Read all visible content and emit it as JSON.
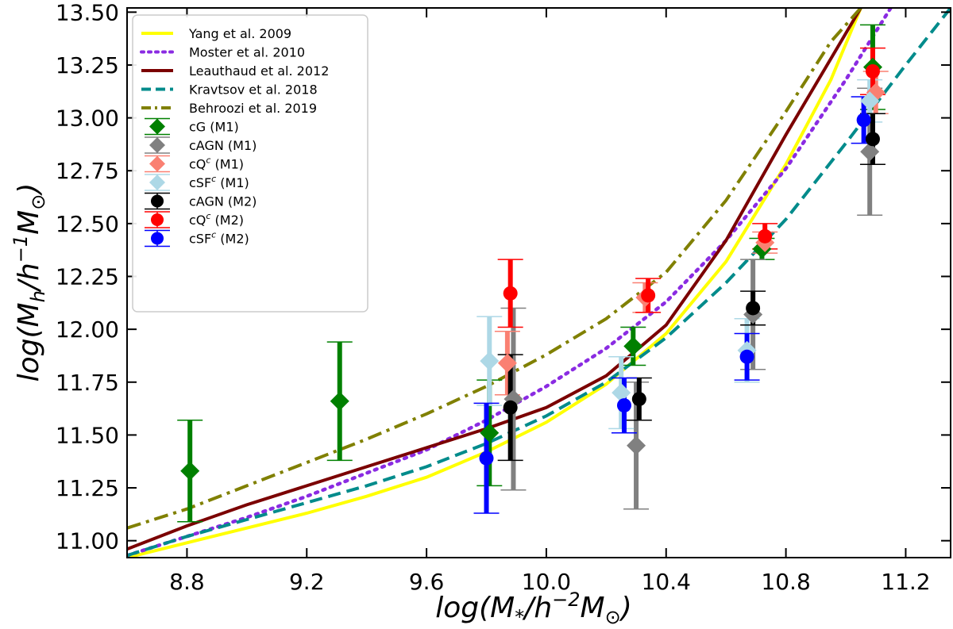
{
  "chart_data": {
    "type": "scatter",
    "title": "",
    "xlabel": "log(M*/h^-2 M_sun)",
    "ylabel": "log(M_h/h^-1 M_sun)",
    "xlabel_parts": {
      "pre": "log(M",
      "sub1": "*",
      "mid": "/h",
      "sup": "−2",
      "mid2": "M",
      "sub2": "⊙",
      "post": ")"
    },
    "ylabel_parts": {
      "pre": "log(M",
      "sub1": "h",
      "mid": "/h",
      "sup": "−1",
      "mid2": "M",
      "sub2": "⊙",
      "post": ")"
    },
    "xlim": [
      8.6,
      11.35
    ],
    "ylim": [
      10.92,
      13.52
    ],
    "xticks": [
      "8.8",
      "9.2",
      "9.6",
      "10.0",
      "10.4",
      "10.8",
      "11.2"
    ],
    "yticks": [
      "11.00",
      "11.25",
      "11.50",
      "11.75",
      "12.00",
      "12.25",
      "12.50",
      "12.75",
      "13.00",
      "13.25",
      "13.50"
    ],
    "legend_position": "top-left",
    "lines": [
      {
        "name": "Yang et al. 2009",
        "color": "#ffff00",
        "style": "solid",
        "x": [
          8.6,
          8.8,
          9.0,
          9.2,
          9.4,
          9.6,
          9.8,
          10.0,
          10.2,
          10.4,
          10.6,
          10.8,
          10.95,
          11.05
        ],
        "y": [
          10.92,
          10.99,
          11.06,
          11.13,
          11.21,
          11.3,
          11.42,
          11.56,
          11.74,
          11.98,
          12.32,
          12.78,
          13.18,
          13.52
        ]
      },
      {
        "name": "Moster et al. 2010",
        "color": "#8a2be2",
        "style": "dotted",
        "x": [
          8.6,
          8.8,
          9.0,
          9.2,
          9.4,
          9.6,
          9.8,
          10.0,
          10.2,
          10.4,
          10.6,
          10.8,
          11.0,
          11.15
        ],
        "y": [
          10.93,
          11.02,
          11.11,
          11.21,
          11.32,
          11.43,
          11.57,
          11.73,
          11.91,
          12.13,
          12.42,
          12.76,
          13.18,
          13.52
        ]
      },
      {
        "name": "Leauthaud et al. 2012",
        "color": "#7b0000",
        "style": "solid",
        "x": [
          8.6,
          8.8,
          9.0,
          9.2,
          9.4,
          9.6,
          9.8,
          10.0,
          10.2,
          10.4,
          10.6,
          10.8,
          10.95,
          11.05
        ],
        "y": [
          10.96,
          11.07,
          11.17,
          11.26,
          11.35,
          11.44,
          11.53,
          11.63,
          11.78,
          12.02,
          12.42,
          12.92,
          13.28,
          13.52
        ]
      },
      {
        "name": "Kravtsov et al. 2018",
        "color": "#008b8b",
        "style": "dashed",
        "x": [
          8.6,
          8.8,
          9.0,
          9.2,
          9.4,
          9.6,
          9.8,
          10.0,
          10.2,
          10.4,
          10.6,
          10.8,
          11.0,
          11.2,
          11.35
        ],
        "y": [
          10.93,
          11.02,
          11.1,
          11.18,
          11.26,
          11.35,
          11.46,
          11.59,
          11.75,
          11.96,
          12.22,
          12.52,
          12.88,
          13.25,
          13.52
        ]
      },
      {
        "name": "Behroozi et al. 2019",
        "color": "#808000",
        "style": "dashdot",
        "x": [
          8.6,
          8.8,
          9.0,
          9.2,
          9.4,
          9.6,
          9.8,
          10.0,
          10.2,
          10.4,
          10.6,
          10.8,
          10.95,
          11.05
        ],
        "y": [
          11.06,
          11.15,
          11.26,
          11.37,
          11.48,
          11.6,
          11.73,
          11.88,
          12.05,
          12.27,
          12.61,
          13.03,
          13.36,
          13.52
        ]
      }
    ],
    "points": [
      {
        "name": "cG (M1)",
        "color": "#008000",
        "marker": "diamond",
        "ecolor": "#008000",
        "x": [
          8.81,
          9.31,
          9.81,
          10.29,
          10.72,
          11.09
        ],
        "y": [
          11.33,
          11.66,
          11.51,
          11.92,
          12.38,
          13.24
        ],
        "err": [
          0.24,
          0.28,
          0.25,
          0.09,
          0.05,
          0.2
        ]
      },
      {
        "name": "cAGN (M1)",
        "color": "#808080",
        "marker": "diamond",
        "ecolor": "#808080",
        "x": [
          9.89,
          10.3,
          10.69,
          11.08
        ],
        "y": [
          11.67,
          11.45,
          12.07,
          12.84
        ],
        "err": [
          0.43,
          0.3,
          0.26,
          0.3
        ]
      },
      {
        "name": "cQ^c (M1)",
        "color": "#fa8072",
        "marker": "diamond",
        "ecolor": "#fa8072",
        "x": [
          9.87,
          10.33,
          10.73,
          11.1
        ],
        "y": [
          11.84,
          12.15,
          12.41,
          13.12
        ],
        "err": [
          0.15,
          0.07,
          0.05,
          0.1
        ]
      },
      {
        "name": "cSF^c (M1)",
        "color": "#add8e6",
        "marker": "diamond",
        "ecolor": "#add8e6",
        "x": [
          9.81,
          10.25,
          10.67,
          11.08
        ],
        "y": [
          11.85,
          11.7,
          11.9,
          13.08
        ],
        "err": [
          0.21,
          0.17,
          0.15,
          0.1
        ]
      },
      {
        "name": "cAGN (M2)",
        "color": "#000000",
        "marker": "circle",
        "ecolor": "#000000",
        "x": [
          9.88,
          10.31,
          10.69,
          11.09
        ],
        "y": [
          11.63,
          11.67,
          12.1,
          12.9
        ],
        "err": [
          0.25,
          0.1,
          0.08,
          0.12
        ]
      },
      {
        "name": "cQ^c (M2)",
        "color": "#ff0000",
        "marker": "circle",
        "ecolor": "#ff0000",
        "x": [
          9.88,
          10.34,
          10.73,
          11.09
        ],
        "y": [
          12.17,
          12.16,
          12.44,
          13.22
        ],
        "err": [
          0.16,
          0.08,
          0.06,
          0.11
        ]
      },
      {
        "name": "cSF^c (M2)",
        "color": "#0000ff",
        "marker": "circle",
        "ecolor": "#0000ff",
        "x": [
          9.8,
          10.26,
          10.67,
          11.06
        ],
        "y": [
          11.39,
          11.64,
          11.87,
          12.99
        ],
        "err": [
          0.26,
          0.13,
          0.11,
          0.11
        ]
      }
    ],
    "legend": [
      {
        "label": "Yang et al. 2009",
        "kind": "line",
        "ref": 0
      },
      {
        "label": "Moster et al. 2010",
        "kind": "line",
        "ref": 1
      },
      {
        "label": "Leauthaud et al. 2012",
        "kind": "line",
        "ref": 2
      },
      {
        "label": "Kravtsov et al. 2018",
        "kind": "line",
        "ref": 3
      },
      {
        "label": "Behroozi et al. 2019",
        "kind": "line",
        "ref": 4
      },
      {
        "label": "cG (M1)",
        "kind": "point",
        "ref": 0
      },
      {
        "label": "cAGN (M1)",
        "kind": "point",
        "ref": 1
      },
      {
        "label": "cQ",
        "label_sup": "c",
        "label_post": " (M1)",
        "kind": "point",
        "ref": 2
      },
      {
        "label": "cSF",
        "label_sup": "c",
        "label_post": " (M1)",
        "kind": "point",
        "ref": 3
      },
      {
        "label": "cAGN (M2)",
        "kind": "point",
        "ref": 4
      },
      {
        "label": "cQ",
        "label_sup": "c",
        "label_post": " (M2)",
        "kind": "point",
        "ref": 5
      },
      {
        "label": "cSF",
        "label_sup": "c",
        "label_post": " (M2)",
        "kind": "point",
        "ref": 6
      }
    ]
  }
}
